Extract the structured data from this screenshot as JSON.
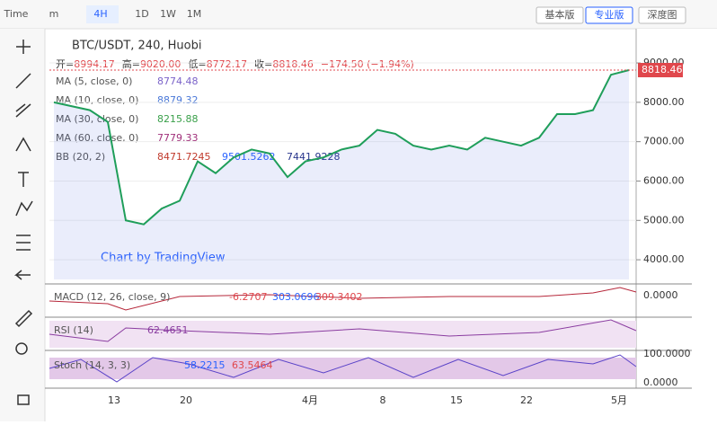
{
  "toolbar": {
    "items": [
      "Time",
      "m",
      "4H",
      "1D",
      "1W",
      "1M"
    ],
    "views": [
      "基本版",
      "专业版",
      "深度图"
    ]
  },
  "legend": {
    "symbol": "BTC/USDT, 240, Huobi",
    "ohlc": [
      {
        "label": "开=",
        "value": "8994.17"
      },
      {
        "label": "高=",
        "value": "9020.00"
      },
      {
        "label": "低=",
        "value": "8772.17"
      },
      {
        "label": "收=",
        "value": "8818.46"
      }
    ],
    "change": "−174.50 (−1.94%)",
    "indicators": [
      {
        "name": "MA (5, close, 0)",
        "values": [
          "8774.48"
        ]
      },
      {
        "name": "MA (10, close, 0)",
        "values": [
          "8879.32"
        ]
      },
      {
        "name": "MA (30, close, 0)",
        "values": [
          "8215.88"
        ]
      },
      {
        "name": "MA (60, close, 0)",
        "values": [
          "7779.33"
        ]
      },
      {
        "name": "BB (20, 2)",
        "values": [
          "8471.7245",
          "9501.5262",
          "7441.9228"
        ]
      }
    ]
  },
  "watermark": "Chart by TradingView",
  "chart": {
    "ylim": [
      3500,
      9800
    ],
    "yticks": [
      {
        "value": 4000,
        "label": "4000.00"
      },
      {
        "value": 5000,
        "label": "5000.00"
      },
      {
        "value": 6000,
        "label": "6000.00"
      },
      {
        "value": 7000,
        "label": "7000.00"
      },
      {
        "value": 8000,
        "label": "8000.00"
      },
      {
        "value": 9000,
        "label": "9000.00"
      }
    ],
    "closes": [
      8000,
      7900,
      7800,
      7500,
      5000,
      4900,
      5300,
      5500,
      6500,
      6200,
      6600,
      6800,
      6700,
      6100,
      6500,
      6600,
      6800,
      6900,
      7300,
      7200,
      6900,
      6800,
      6900,
      6800,
      7100,
      7000,
      6900,
      7100,
      7700,
      7700,
      7800,
      8700,
      8818.46
    ],
    "last_price": {
      "value": 8818.46,
      "label": "8818.46"
    },
    "xlabels": [
      "13",
      "20",
      "4月",
      "8",
      "15",
      "22",
      "5月"
    ]
  },
  "macd": {
    "name": "MACD (12, 26, close, 9)",
    "values": [
      "-6.2707",
      "303.0696",
      "309.3402"
    ],
    "axis": "0.0000"
  },
  "rsi": {
    "name": "RSI (14)",
    "values": [
      "62.4651"
    ]
  },
  "stoch": {
    "name": "Stoch (14, 3, 3)",
    "values": [
      "58.2215",
      "63.5464"
    ],
    "axis": [
      "100.0000",
      "0.0000"
    ]
  }
}
